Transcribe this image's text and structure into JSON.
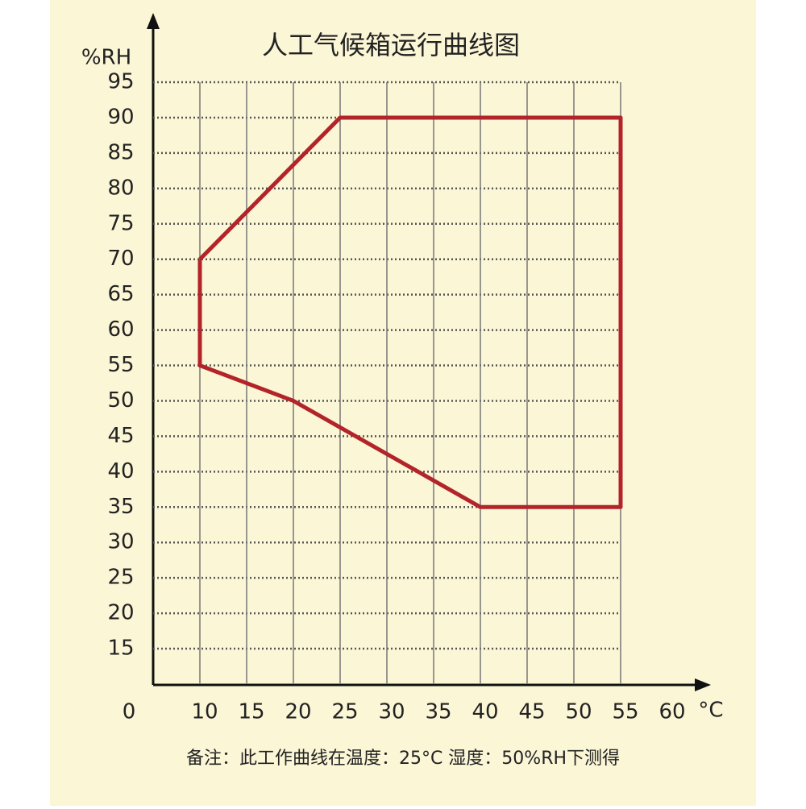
{
  "chart_data": {
    "type": "line",
    "title": "人工气候箱运行曲线图",
    "y_label": "%RH",
    "x_label": "°C",
    "origin_label": "0",
    "note": "备注：此工作曲线在温度：25°C  湿度：50%RH下测得",
    "x": [
      10,
      10,
      20,
      40,
      55,
      55,
      25,
      10
    ],
    "series": [
      {
        "color": "#b3242a",
        "values": [
          70,
          55,
          50,
          35,
          35,
          90,
          90,
          70
        ]
      }
    ],
    "xlim": [
      5,
      55
    ],
    "ylim": [
      10,
      95
    ],
    "xticks": [
      10,
      15,
      20,
      25,
      30,
      35,
      40,
      45,
      50,
      55,
      60
    ],
    "yticks": [
      15,
      20,
      25,
      30,
      35,
      40,
      45,
      50,
      55,
      60,
      65,
      70,
      75,
      80,
      85,
      90,
      95
    ],
    "grid": true
  }
}
